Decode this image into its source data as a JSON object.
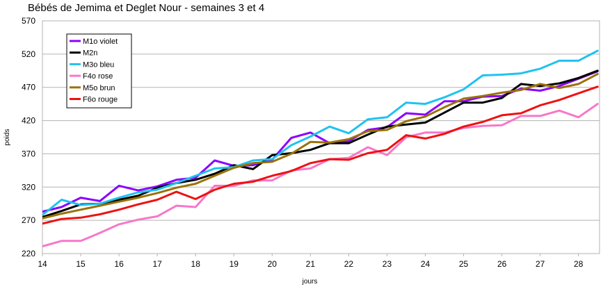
{
  "chart_data": {
    "type": "line",
    "title": "Bébés de Jemima et Deglet Nour - semaines 3 et 4",
    "xlabel": "jours",
    "ylabel": "poids",
    "xlim": [
      14,
      28.55
    ],
    "ylim": [
      220,
      570
    ],
    "x_ticks": [
      14,
      15,
      16,
      17,
      18,
      19,
      20,
      21,
      22,
      23,
      24,
      25,
      26,
      27,
      28
    ],
    "y_ticks": [
      220,
      270,
      320,
      370,
      420,
      470,
      520,
      570
    ],
    "grid": "horizontal",
    "legend_position": "top-left",
    "x": [
      14,
      14.5,
      15,
      15.5,
      16,
      16.5,
      17,
      17.5,
      18,
      18.5,
      19,
      19.5,
      20,
      20.5,
      21,
      21.5,
      22,
      22.5,
      23,
      23.5,
      24,
      24.5,
      25,
      25.5,
      26,
      26.5,
      27,
      27.5,
      28,
      28.5
    ],
    "series": [
      {
        "name": "M1o violet",
        "color": "#8b00ff",
        "values": [
          283,
          290,
          304,
          299,
          322,
          315,
          321,
          331,
          334,
          360,
          352,
          353,
          361,
          394,
          402,
          386,
          389,
          406,
          410,
          431,
          429,
          449,
          449,
          456,
          457,
          468,
          465,
          472,
          483,
          494
        ]
      },
      {
        "name": "M2n",
        "color": "#000000",
        "values": [
          275,
          284,
          294,
          295,
          301,
          307,
          319,
          326,
          331,
          340,
          353,
          347,
          368,
          371,
          376,
          386,
          386,
          399,
          411,
          414,
          417,
          432,
          447,
          447,
          454,
          475,
          472,
          476,
          484,
          495
        ]
      },
      {
        "name": "M3o bleu",
        "color": "#1fc2f0",
        "values": [
          278,
          301,
          293,
          295,
          304,
          312,
          316,
          326,
          337,
          348,
          350,
          360,
          362,
          383,
          396,
          411,
          401,
          422,
          425,
          447,
          445,
          455,
          467,
          488,
          489,
          491,
          498,
          510,
          510,
          525
        ]
      },
      {
        "name": "F4o rose",
        "color": "#f777c9",
        "values": [
          231,
          239,
          239,
          251,
          264,
          271,
          276,
          292,
          290,
          322,
          322,
          330,
          330,
          345,
          348,
          362,
          364,
          380,
          368,
          395,
          402,
          402,
          409,
          412,
          413,
          427,
          427,
          435,
          425,
          445
        ]
      },
      {
        "name": "M5o brun",
        "color": "#9a7205",
        "values": [
          273,
          280,
          286,
          292,
          298,
          304,
          311,
          319,
          325,
          337,
          349,
          356,
          358,
          370,
          388,
          387,
          392,
          404,
          406,
          419,
          426,
          440,
          453,
          457,
          462,
          466,
          475,
          469,
          475,
          490
        ]
      },
      {
        "name": "F6o rouge",
        "color": "#ee1111",
        "values": [
          265,
          272,
          274,
          279,
          286,
          294,
          301,
          313,
          302,
          316,
          325,
          328,
          337,
          344,
          356,
          362,
          361,
          371,
          376,
          398,
          393,
          400,
          411,
          418,
          428,
          431,
          443,
          451,
          461,
          471
        ]
      }
    ]
  }
}
